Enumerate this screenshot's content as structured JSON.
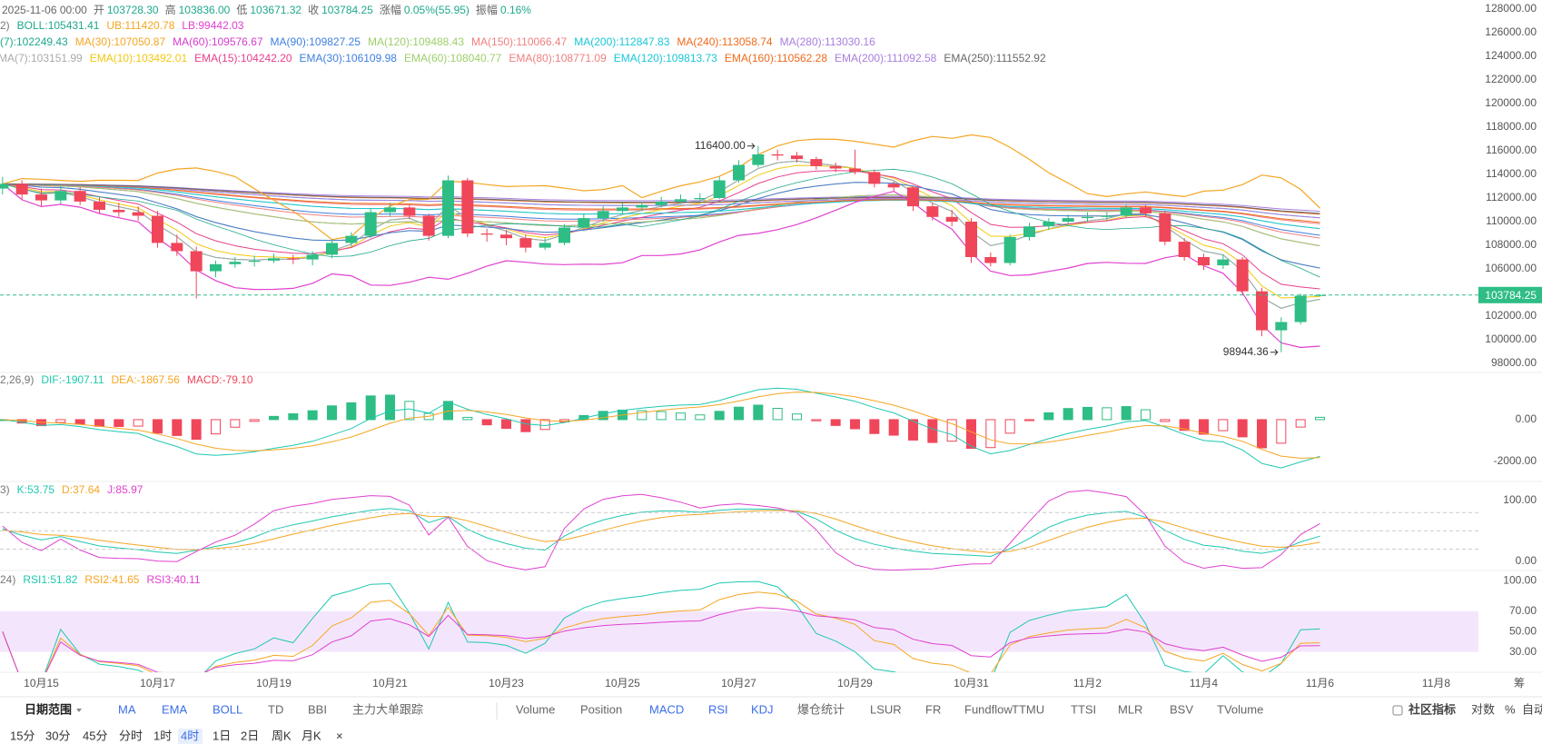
{
  "header": {
    "datetime": "2025-11-06 00:00",
    "fields": [
      {
        "label": "开",
        "value": "103728.30"
      },
      {
        "label": "高",
        "value": "103836.00"
      },
      {
        "label": "低",
        "value": "103671.32"
      },
      {
        "label": "收",
        "value": "103784.25"
      },
      {
        "label": "涨幅",
        "value": "0.05%(55.95)"
      },
      {
        "label": "振幅",
        "value": "0.16%"
      }
    ]
  },
  "legends": {
    "boll": [
      {
        "text": "2)",
        "color": "#777777"
      },
      {
        "text": "BOLL:105431.41",
        "color": "#1fa88c"
      },
      {
        "text": "UB:111420.78",
        "color": "#f5a623"
      },
      {
        "text": "LB:99442.03",
        "color": "#e040d0"
      }
    ],
    "ma": [
      {
        "text": "(7):102249.43",
        "color": "#1fa88c"
      },
      {
        "text": "MA(30):107050.87",
        "color": "#f5a623"
      },
      {
        "text": "MA(60):109576.67",
        "color": "#d63ccf"
      },
      {
        "text": "MA(90):109827.25",
        "color": "#3d7fe0"
      },
      {
        "text": "MA(120):109488.43",
        "color": "#9ccf6a"
      },
      {
        "text": "MA(150):110066.47",
        "color": "#ef7f7f"
      },
      {
        "text": "MA(200):112847.83",
        "color": "#19c7d8"
      },
      {
        "text": "MA(240):113058.74",
        "color": "#f06a1a"
      },
      {
        "text": "MA(280):113030.16",
        "color": "#a77de0"
      }
    ],
    "ema": [
      {
        "text": "MA(7):103151.99",
        "color": "#aaaaaa"
      },
      {
        "text": "EMA(10):103492.01",
        "color": "#f2c811"
      },
      {
        "text": "EMA(15):104242.20",
        "color": "#e8408c"
      },
      {
        "text": "EMA(30):106109.98",
        "color": "#3d7fe0"
      },
      {
        "text": "EMA(60):108040.77",
        "color": "#9ccf6a"
      },
      {
        "text": "EMA(80):108771.09",
        "color": "#ef7f7f"
      },
      {
        "text": "EMA(120):109813.73",
        "color": "#19c7d8"
      },
      {
        "text": "EMA(160):110562.28",
        "color": "#f06a1a"
      },
      {
        "text": "EMA(200):111092.58",
        "color": "#a77de0"
      },
      {
        "text": "EMA(250):111552.92",
        "color": "#666666"
      }
    ]
  },
  "price_pane": {
    "ylim": [
      97230,
      128770
    ],
    "yticks": [
      {
        "value": 128000,
        "label": "128000.00"
      },
      {
        "value": 126000,
        "label": "126000.00"
      },
      {
        "value": 124000,
        "label": "124000.00"
      },
      {
        "value": 122000,
        "label": "122000.00"
      },
      {
        "value": 120000,
        "label": "120000.00"
      },
      {
        "value": 118000,
        "label": "118000.00"
      },
      {
        "value": 116000,
        "label": "116000.00"
      },
      {
        "value": 114000,
        "label": "114000.00"
      },
      {
        "value": 112000,
        "label": "112000.00"
      },
      {
        "value": 110000,
        "label": "110000.00"
      },
      {
        "value": 108000,
        "label": "108000.00"
      },
      {
        "value": 106000,
        "label": "106000.00"
      },
      {
        "value": 104000,
        "label": "104000.00"
      },
      {
        "value": 102000,
        "label": "102000.00"
      },
      {
        "value": 100000,
        "label": "100000.00"
      },
      {
        "value": 98000,
        "label": "98000.00"
      }
    ],
    "up_color": "#2ebd85",
    "down_color": "#f0465a",
    "high_label": "116400.00",
    "candles": [
      [
        112800,
        113800,
        112300,
        113200
      ],
      [
        113200,
        113500,
        111900,
        112300
      ],
      [
        112300,
        112800,
        111300,
        111800
      ],
      [
        111800,
        113000,
        111500,
        112600
      ],
      [
        112600,
        112900,
        111400,
        111700
      ],
      [
        111700,
        112100,
        110700,
        111000
      ],
      [
        111000,
        111600,
        110400,
        110800
      ],
      [
        110800,
        111300,
        110100,
        110500
      ],
      [
        110500,
        110900,
        107800,
        108200
      ],
      [
        108200,
        108900,
        107100,
        107500
      ],
      [
        107500,
        107900,
        103500,
        105800
      ],
      [
        105800,
        106700,
        105300,
        106400
      ],
      [
        106400,
        107000,
        106100,
        106600
      ],
      [
        106600,
        107100,
        106200,
        106700
      ],
      [
        106700,
        107300,
        106500,
        106900
      ],
      [
        106900,
        107200,
        106400,
        106800
      ],
      [
        106800,
        107500,
        106300,
        107200
      ],
      [
        107200,
        108500,
        106900,
        108200
      ],
      [
        108200,
        109100,
        107900,
        108800
      ],
      [
        108800,
        111100,
        108600,
        110800
      ],
      [
        110800,
        111600,
        110400,
        111200
      ],
      [
        111200,
        111400,
        110200,
        110500
      ],
      [
        110500,
        110700,
        108400,
        108800
      ],
      [
        108800,
        113900,
        108600,
        113500
      ],
      [
        113500,
        113700,
        108700,
        109000
      ],
      [
        109000,
        109400,
        108300,
        108900
      ],
      [
        108900,
        109300,
        108000,
        108600
      ],
      [
        108600,
        108900,
        107400,
        107800
      ],
      [
        107800,
        108600,
        107600,
        108200
      ],
      [
        108200,
        109800,
        108000,
        109500
      ],
      [
        109500,
        110700,
        109200,
        110300
      ],
      [
        110300,
        111300,
        110000,
        110900
      ],
      [
        110900,
        111600,
        110700,
        111200
      ],
      [
        111200,
        111700,
        110900,
        111400
      ],
      [
        111400,
        112100,
        111200,
        111700
      ],
      [
        111700,
        112300,
        111500,
        111900
      ],
      [
        111900,
        112400,
        111600,
        112000
      ],
      [
        112000,
        113800,
        111900,
        113500
      ],
      [
        113500,
        115200,
        113300,
        114800
      ],
      [
        114800,
        116400,
        114600,
        115700
      ],
      [
        115700,
        116100,
        115200,
        115600
      ],
      [
        115600,
        115900,
        115000,
        115300
      ],
      [
        115300,
        115500,
        114400,
        114700
      ],
      [
        114700,
        115000,
        114200,
        114500
      ],
      [
        114500,
        116100,
        114000,
        114200
      ],
      [
        114200,
        114400,
        112900,
        113200
      ],
      [
        113200,
        113400,
        112600,
        112900
      ],
      [
        112900,
        113000,
        110900,
        111300
      ],
      [
        111300,
        111600,
        110100,
        110400
      ],
      [
        110400,
        111000,
        109600,
        110000
      ],
      [
        110000,
        110300,
        106500,
        107000
      ],
      [
        107000,
        107400,
        106200,
        106500
      ],
      [
        106500,
        108900,
        106300,
        108700
      ],
      [
        108700,
        109900,
        108400,
        109600
      ],
      [
        109600,
        110300,
        109300,
        110000
      ],
      [
        110000,
        110600,
        109800,
        110300
      ],
      [
        110300,
        110800,
        110000,
        110400
      ],
      [
        110400,
        110800,
        110100,
        110500
      ],
      [
        110500,
        111500,
        110300,
        111200
      ],
      [
        111200,
        111400,
        110400,
        110700
      ],
      [
        110700,
        110900,
        108000,
        108300
      ],
      [
        108300,
        108600,
        106700,
        107000
      ],
      [
        107000,
        107300,
        105900,
        106300
      ],
      [
        106300,
        107200,
        106000,
        106800
      ],
      [
        106800,
        107000,
        103800,
        104100
      ],
      [
        104100,
        104400,
        100300,
        100800
      ],
      [
        100800,
        101900,
        98944.36,
        101500
      ],
      [
        101500,
        103900,
        101300,
        103728.3
      ],
      [
        103728.3,
        103836.0,
        103671.32,
        103784.25
      ]
    ],
    "x_ticks": [
      "10月15",
      "10月17",
      "10月19",
      "10月21",
      "10月23",
      "10月25",
      "10月27",
      "10月29",
      "10月31",
      "11月2",
      "11月4",
      "11月6",
      "11月8"
    ],
    "x_extra": "筹"
  },
  "macd": {
    "legend": [
      {
        "text": "2,26,9)",
        "color": "#777777"
      },
      {
        "text": "DIF:-1907.11",
        "color": "#1fc8b0"
      },
      {
        "text": "DEA:-1867.56",
        "color": "#f5a623"
      },
      {
        "text": "MACD:-79.10",
        "color": "#f0465a"
      }
    ],
    "ylim": [
      -2950,
      2250
    ],
    "yticks": [
      {
        "value": 0,
        "label": "0.00"
      },
      {
        "value": -2000,
        "label": "-2000.00"
      }
    ]
  },
  "kdj": {
    "legend": [
      {
        "text": "3)",
        "color": "#777777"
      },
      {
        "text": "K:53.75",
        "color": "#1fc8b0"
      },
      {
        "text": "D:37.64",
        "color": "#f5a623"
      },
      {
        "text": "J:85.97",
        "color": "#e040d0"
      }
    ],
    "ylim": [
      -15,
      131
    ],
    "yticks": [
      {
        "value": 100,
        "label": "100.00"
      },
      {
        "value": 0,
        "label": "0.00"
      }
    ],
    "levels": [
      80,
      50,
      20
    ]
  },
  "rsi": {
    "legend": [
      {
        "text": "24)",
        "color": "#777777"
      },
      {
        "text": "RSI1:51.82",
        "color": "#1fc8b0"
      },
      {
        "text": "RSI2:41.65",
        "color": "#f5a623"
      },
      {
        "text": "RSI3:40.11",
        "color": "#e040d0"
      }
    ],
    "ylim": [
      10,
      110
    ],
    "yticks": [
      {
        "value": 100,
        "label": "100.00"
      },
      {
        "value": 70,
        "label": "70.00"
      },
      {
        "value": 50,
        "label": "50.00"
      },
      {
        "value": 30,
        "label": "30.00"
      }
    ],
    "band_color": "#f3e6fc"
  },
  "toolbar": {
    "range": "日期范围",
    "main_indicators": [
      {
        "label": "MA",
        "active": true
      },
      {
        "label": "EMA",
        "active": true
      },
      {
        "label": "BOLL",
        "active": true
      },
      {
        "label": "TD",
        "active": false
      },
      {
        "label": "BBI",
        "active": false
      },
      {
        "label": "主力大单跟踪",
        "active": false
      }
    ],
    "sub_indicators": [
      {
        "label": "Volume",
        "active": false
      },
      {
        "label": "Position",
        "active": false
      },
      {
        "label": "MACD",
        "active": true
      },
      {
        "label": "RSI",
        "active": true
      },
      {
        "label": "KDJ",
        "active": true
      },
      {
        "label": "爆仓统计",
        "active": false
      },
      {
        "label": "LSUR",
        "active": false
      },
      {
        "label": "FR",
        "active": false
      },
      {
        "label": "Fundflow",
        "active": false
      },
      {
        "label": "TTMU",
        "active": false
      },
      {
        "label": "TTSI",
        "active": false
      },
      {
        "label": "MLR",
        "active": false
      },
      {
        "label": "BSV",
        "active": false
      },
      {
        "label": "TVolume",
        "active": false
      }
    ],
    "right": [
      "社区指标",
      "对数",
      "%",
      "自动"
    ],
    "intervals": [
      {
        "label": "15分",
        "active": false
      },
      {
        "label": "30分",
        "active": false
      },
      {
        "label": "45分",
        "active": false
      },
      {
        "label": "分时",
        "active": false
      },
      {
        "label": "1时",
        "active": false
      },
      {
        "label": "4时",
        "active": true
      },
      {
        "label": "1日",
        "active": false
      },
      {
        "label": "2日",
        "active": false
      },
      {
        "label": "周K",
        "active": false
      },
      {
        "label": "月K",
        "active": false
      }
    ],
    "close": "×"
  }
}
